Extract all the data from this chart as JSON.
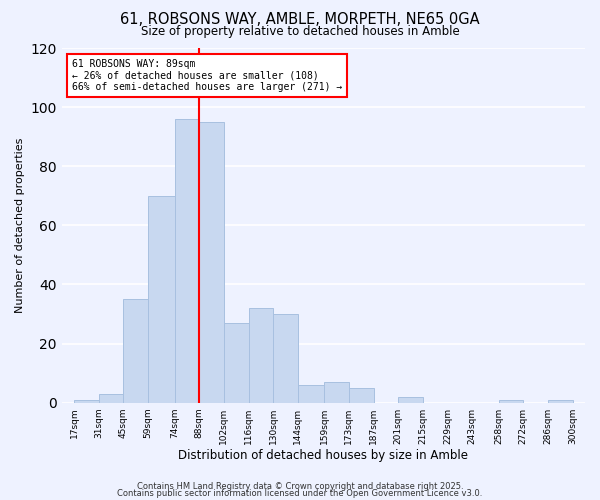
{
  "title_line1": "61, ROBSONS WAY, AMBLE, MORPETH, NE65 0GA",
  "title_line2": "Size of property relative to detached houses in Amble",
  "xlabel": "Distribution of detached houses by size in Amble",
  "ylabel": "Number of detached properties",
  "bar_color": "#c8d8f0",
  "bar_edge_color": "#a8c0e0",
  "vline_x": 88,
  "vline_color": "red",
  "annotation_title": "61 ROBSONS WAY: 89sqm",
  "annotation_line2": "← 26% of detached houses are smaller (108)",
  "annotation_line3": "66% of semi-detached houses are larger (271) →",
  "bins": [
    17,
    31,
    45,
    59,
    74,
    88,
    102,
    116,
    130,
    144,
    159,
    173,
    187,
    201,
    215,
    229,
    243,
    258,
    272,
    286,
    300
  ],
  "counts": [
    1,
    3,
    35,
    70,
    96,
    95,
    27,
    32,
    30,
    6,
    7,
    5,
    0,
    2,
    0,
    0,
    0,
    1,
    0,
    1
  ],
  "ylim": [
    0,
    120
  ],
  "yticks": [
    0,
    20,
    40,
    60,
    80,
    100,
    120
  ],
  "background_color": "#eef2ff",
  "grid_color": "#ffffff",
  "footnote1": "Contains HM Land Registry data © Crown copyright and database right 2025.",
  "footnote2": "Contains public sector information licensed under the Open Government Licence v3.0."
}
